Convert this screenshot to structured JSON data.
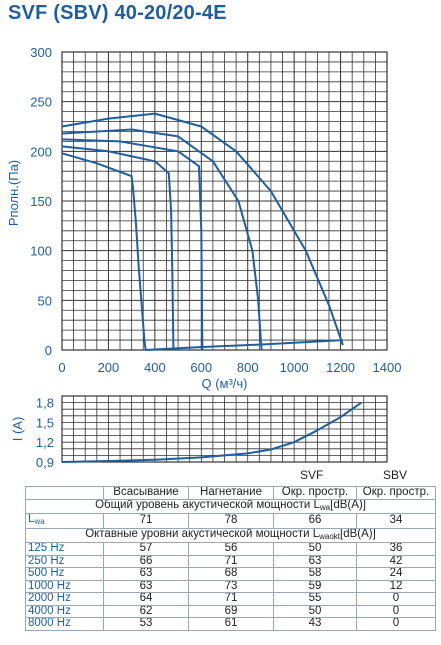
{
  "title": "SVF (SBV) 40-20/20-4E",
  "chart_data": [
    {
      "type": "line",
      "ylabel": "Pполн.(Па)",
      "xlabel": "Q (м³/ч)",
      "xlim": [
        0,
        1400
      ],
      "ylim": [
        0,
        300
      ],
      "xticks": [
        0,
        200,
        400,
        600,
        800,
        1000,
        1200,
        1400
      ],
      "yticks": [
        0,
        50,
        100,
        150,
        200,
        250,
        300
      ],
      "grid": true,
      "series": [
        {
          "x": [
            0,
            150,
            300,
            305,
            318,
            330,
            345,
            355,
            360
          ],
          "y": [
            198,
            188,
            175,
            165,
            130,
            85,
            40,
            10,
            0
          ]
        },
        {
          "x": [
            0,
            200,
            400,
            460,
            470,
            475,
            478,
            480
          ],
          "y": [
            205,
            200,
            190,
            178,
            140,
            80,
            30,
            0
          ]
        },
        {
          "x": [
            0,
            250,
            500,
            590,
            600,
            603,
            605
          ],
          "y": [
            212,
            210,
            200,
            185,
            120,
            40,
            0
          ]
        },
        {
          "x": [
            0,
            300,
            500,
            650,
            760,
            820,
            845,
            855,
            860
          ],
          "y": [
            218,
            222,
            215,
            190,
            150,
            100,
            50,
            15,
            0
          ]
        },
        {
          "x": [
            0,
            200,
            400,
            600,
            750,
            900,
            1050,
            1150,
            1210
          ],
          "y": [
            225,
            233,
            238,
            225,
            200,
            160,
            100,
            45,
            5
          ]
        },
        {
          "x": [
            360,
            480,
            605,
            860,
            1210
          ],
          "y": [
            0,
            1.5,
            3,
            5.5,
            10
          ]
        }
      ]
    },
    {
      "type": "line",
      "ylabel": "I (A)",
      "xlim": [
        0,
        1400
      ],
      "ylim": [
        0.9,
        1.9
      ],
      "yticks": [
        "0,9",
        "1,2",
        "1,5",
        "1,8"
      ],
      "grid": true,
      "series": [
        {
          "x": [
            0,
            200,
            400,
            600,
            800,
            900,
            1000,
            1100,
            1200,
            1290
          ],
          "y": [
            0.9,
            0.915,
            0.935,
            0.97,
            1.03,
            1.09,
            1.2,
            1.38,
            1.58,
            1.8
          ]
        }
      ]
    }
  ],
  "table": {
    "svf_label": "SVF",
    "sbv_label": "SBV",
    "headers": [
      "",
      "Всасывание",
      "Нагнетание",
      "Окр. простр.",
      "Окр. простр."
    ],
    "total_title": "Общий уровень акустической мощности L",
    "total_title_sub": "wa",
    "total_title_unit": "[dB(A)]",
    "lwa_label": "L",
    "lwa_sub": "wa",
    "lwa_values": [
      "71",
      "78",
      "66",
      "34"
    ],
    "octave_title": "Октавные уровни акустической мощности L",
    "octave_title_sub": "waokt",
    "octave_title_unit": "[dB(A)]",
    "rows": [
      {
        "label": "125 Hz",
        "values": [
          "57",
          "56",
          "50",
          "36"
        ]
      },
      {
        "label": "250 Hz",
        "values": [
          "66",
          "71",
          "63",
          "42"
        ]
      },
      {
        "label": "500 Hz",
        "values": [
          "63",
          "68",
          "58",
          "24"
        ]
      },
      {
        "label": "1000 Hz",
        "values": [
          "63",
          "73",
          "59",
          "12"
        ]
      },
      {
        "label": "2000 Hz",
        "values": [
          "64",
          "71",
          "55",
          "0"
        ]
      },
      {
        "label": "4000 Hz",
        "values": [
          "62",
          "69",
          "50",
          "0"
        ]
      },
      {
        "label": "8000 Hz",
        "values": [
          "53",
          "61",
          "43",
          "0"
        ]
      }
    ]
  }
}
